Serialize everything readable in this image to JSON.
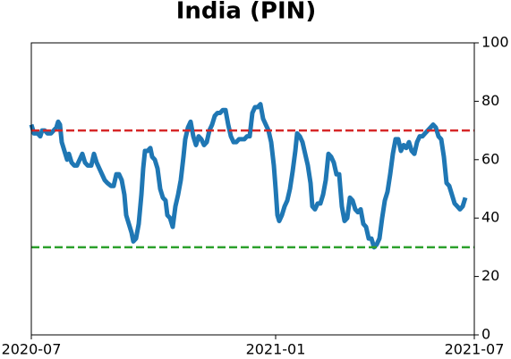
{
  "chart_data": {
    "type": "line",
    "title": "India (PIN)",
    "x": [
      0,
      3,
      7,
      10,
      12,
      15,
      18,
      22,
      25,
      28,
      30,
      32,
      34,
      37,
      40,
      42,
      45,
      48,
      51,
      54,
      57,
      60,
      63,
      67,
      70,
      73,
      76,
      79,
      82,
      85,
      89,
      92,
      95,
      98,
      101,
      104,
      106,
      109,
      112,
      114,
      117,
      120,
      123,
      125,
      127,
      130,
      133,
      135,
      138,
      141,
      144,
      147,
      150,
      152,
      155,
      158,
      161,
      164,
      167,
      170,
      172,
      175,
      178,
      181,
      184,
      187,
      190,
      193,
      196,
      199,
      202,
      205,
      208,
      211,
      214,
      217,
      220,
      223,
      226,
      229,
      232,
      235,
      238,
      241,
      244,
      247,
      250,
      253,
      256,
      259,
      262,
      265,
      268,
      271,
      273,
      275,
      277,
      280,
      283,
      286,
      289,
      292,
      295,
      297,
      300,
      303,
      306,
      309,
      312,
      314,
      317,
      320,
      323,
      326,
      329,
      332,
      335,
      338,
      341,
      344,
      347,
      350,
      353,
      356,
      359,
      362,
      365,
      368,
      371,
      374,
      377,
      380,
      383,
      386,
      389,
      392,
      395,
      398,
      401,
      404,
      407,
      410,
      413,
      416,
      419,
      422,
      425,
      428,
      431,
      434,
      437,
      440,
      443,
      446,
      449,
      452,
      455,
      458,
      461,
      464,
      467,
      470,
      473,
      476,
      479,
      482,
      485
    ],
    "series": [
      {
        "name": "PIN",
        "color": "#1f77b4",
        "values": [
          72,
          69,
          69,
          68,
          70,
          70,
          69,
          69,
          70,
          71,
          73,
          72,
          66,
          63,
          60,
          62,
          59,
          58,
          58,
          60,
          62,
          59,
          58,
          58,
          62,
          59,
          57,
          55,
          53,
          52,
          51,
          51,
          55,
          55,
          53,
          48,
          41,
          38,
          35,
          32,
          33,
          38,
          48,
          57,
          63,
          63,
          64,
          61,
          60,
          57,
          50,
          47,
          46,
          41,
          40,
          37,
          44,
          48,
          53,
          61,
          67,
          71,
          73,
          68,
          65,
          68,
          67,
          65,
          66,
          70,
          72,
          75,
          76,
          76,
          77,
          77,
          72,
          68,
          66,
          66,
          67,
          67,
          67,
          68,
          68,
          76,
          78,
          78,
          79,
          74,
          72,
          70,
          66,
          58,
          50,
          41,
          39,
          41,
          44,
          46,
          50,
          56,
          63,
          69,
          68,
          66,
          62,
          58,
          52,
          44,
          43,
          45,
          45,
          48,
          53,
          62,
          61,
          59,
          55,
          55,
          44,
          39,
          40,
          47,
          46,
          43,
          42,
          43,
          38,
          37,
          33,
          33,
          30,
          31,
          33,
          40,
          46,
          49,
          55,
          62,
          67,
          67,
          63,
          65,
          64,
          66,
          63,
          62,
          66,
          68,
          68,
          69,
          70,
          71,
          72,
          71,
          68,
          67,
          61,
          52,
          51,
          48,
          45,
          44,
          43,
          44,
          47
        ]
      }
    ],
    "xlim": [
      0,
      495
    ],
    "xticks": [
      {
        "value": 0,
        "label": "2020-07"
      },
      {
        "value": 273,
        "label": "2021-01"
      },
      {
        "value": 495,
        "label": "2021-07"
      }
    ],
    "ylim": [
      0,
      100
    ],
    "yticks": [
      0,
      20,
      40,
      60,
      80,
      100
    ],
    "yaxis_side": "right",
    "hlines": [
      {
        "value": 70,
        "color": "#d62728"
      },
      {
        "value": 30,
        "color": "#2ca02c"
      }
    ]
  }
}
